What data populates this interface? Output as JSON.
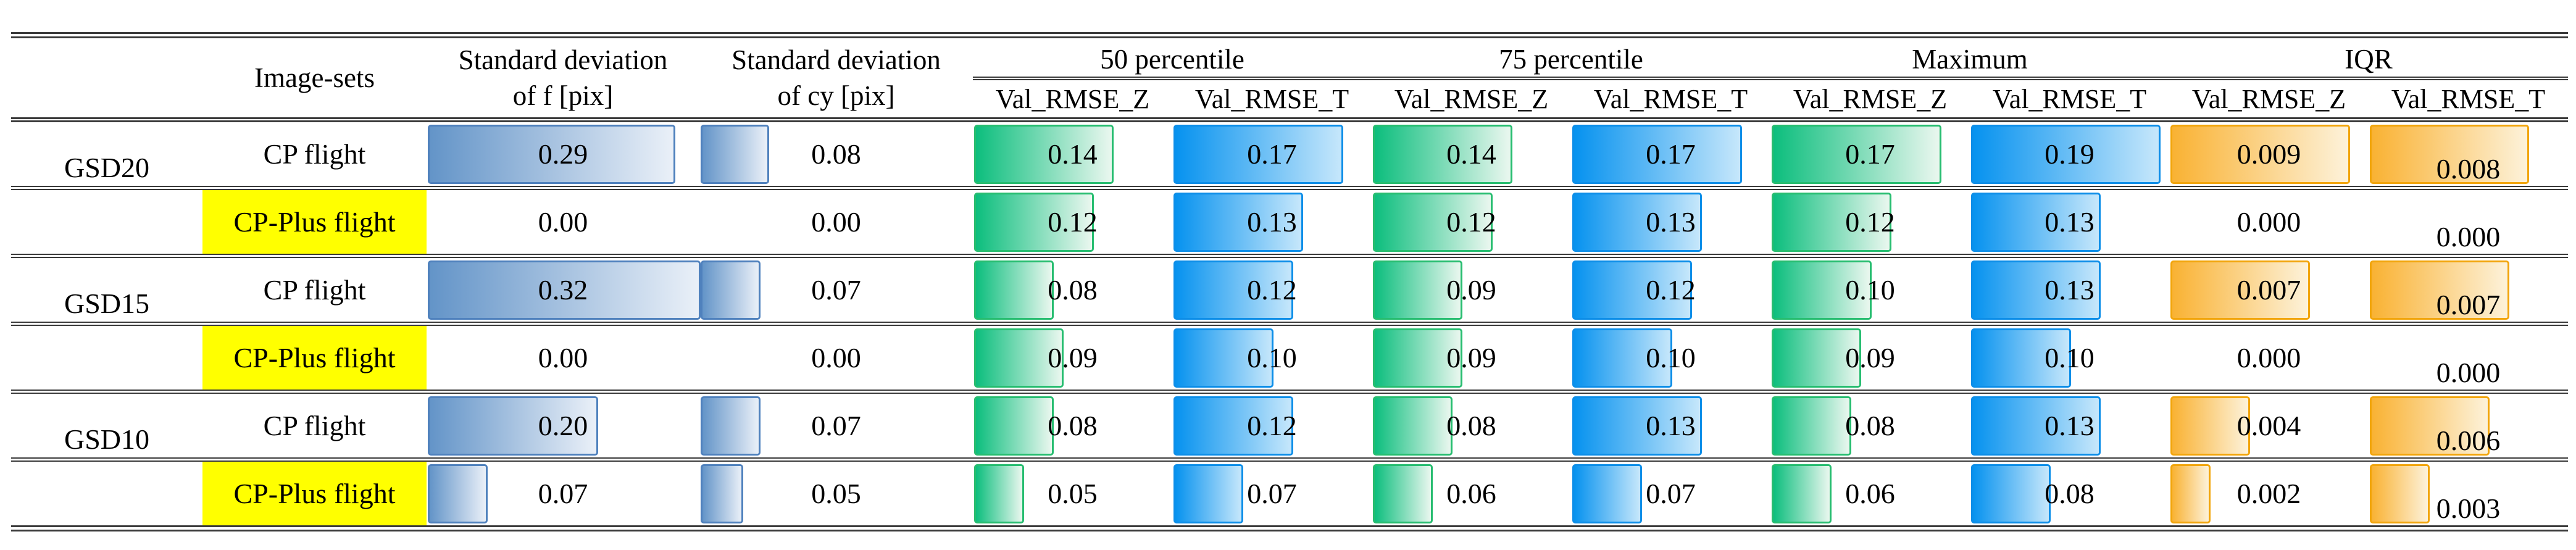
{
  "header": {
    "image_sets": "Image-sets",
    "std_f": [
      "Standard deviation",
      "of f [pix]"
    ],
    "std_cy": [
      "Standard deviation",
      "of cy [pix]"
    ],
    "groups": [
      "50 percentile",
      "75 percentile",
      "Maximum",
      "IQR"
    ],
    "sub_z": "Val_RMSE_Z",
    "sub_t": "Val_RMSE_T"
  },
  "colors": {
    "rule": "#3a3a3a",
    "highlight": "#ffff00",
    "steel_border": "#4f81bd",
    "steel_start": "#6394c8",
    "steel_end": "#eaf0f8",
    "green_border": "#27bd70",
    "green_start": "#0cbe7d",
    "green_end": "#eaf7ef",
    "azure_border": "#0d8ee8",
    "azure_start": "#0692ef",
    "azure_end": "#c6e7fb",
    "orange_border": "#f2a50c",
    "orange_start": "#f9b233",
    "orange_end": "#fdf2da"
  },
  "chart_data": {
    "type": "table",
    "title": "",
    "row_group_labels": [
      "GSD20",
      "GSD15",
      "GSD10"
    ],
    "columns": [
      "Image-sets",
      "Standard deviation of f [pix]",
      "Standard deviation of cy [pix]",
      "50 percentile Val_RMSE_Z",
      "50 percentile Val_RMSE_T",
      "75 percentile Val_RMSE_Z",
      "75 percentile Val_RMSE_T",
      "Maximum Val_RMSE_Z",
      "Maximum Val_RMSE_T",
      "IQR Val_RMSE_Z",
      "IQR Val_RMSE_T"
    ],
    "value_column_meta": [
      {
        "key": "std-f",
        "cls": "steel",
        "max": 0.32,
        "low": false
      },
      {
        "key": "std-cy",
        "cls": "steel",
        "max": 0.32,
        "low": false
      },
      {
        "key": "p50-z",
        "cls": "green",
        "max": 0.2,
        "low": false
      },
      {
        "key": "p50-t",
        "cls": "cyan",
        "max": 0.2,
        "low": false
      },
      {
        "key": "p75-z",
        "cls": "green",
        "max": 0.2,
        "low": false
      },
      {
        "key": "p75-t",
        "cls": "cyan",
        "max": 0.2,
        "low": false
      },
      {
        "key": "max-z",
        "cls": "green",
        "max": 0.2,
        "low": false
      },
      {
        "key": "max-t",
        "cls": "cyan",
        "max": 0.2,
        "low": false
      },
      {
        "key": "iqr-z",
        "cls": "orange",
        "max": 0.01,
        "low": false
      },
      {
        "key": "iqr-t",
        "cls": "orange",
        "max": 0.01,
        "low": true
      }
    ],
    "rows": [
      {
        "group": "GSD20",
        "image_set": "CP flight",
        "highlight": false,
        "values": [
          "0.29",
          "0.08",
          "0.14",
          "0.17",
          "0.14",
          "0.17",
          "0.17",
          "0.19",
          "0.009",
          "0.008"
        ]
      },
      {
        "group": "",
        "image_set": "CP-Plus flight",
        "highlight": true,
        "values": [
          "0.00",
          "0.00",
          "0.12",
          "0.13",
          "0.12",
          "0.13",
          "0.12",
          "0.13",
          "0.000",
          "0.000"
        ]
      },
      {
        "group": "GSD15",
        "image_set": "CP flight",
        "highlight": false,
        "values": [
          "0.32",
          "0.07",
          "0.08",
          "0.12",
          "0.09",
          "0.12",
          "0.10",
          "0.13",
          "0.007",
          "0.007"
        ]
      },
      {
        "group": "",
        "image_set": "CP-Plus flight",
        "highlight": true,
        "values": [
          "0.00",
          "0.00",
          "0.09",
          "0.10",
          "0.09",
          "0.10",
          "0.09",
          "0.10",
          "0.000",
          "0.000"
        ]
      },
      {
        "group": "GSD10",
        "image_set": "CP flight",
        "highlight": false,
        "values": [
          "0.20",
          "0.07",
          "0.08",
          "0.12",
          "0.08",
          "0.13",
          "0.08",
          "0.13",
          "0.004",
          "0.006"
        ]
      },
      {
        "group": "",
        "image_set": "CP-Plus flight",
        "highlight": true,
        "values": [
          "0.07",
          "0.05",
          "0.05",
          "0.07",
          "0.06",
          "0.07",
          "0.06",
          "0.08",
          "0.002",
          "0.003"
        ]
      }
    ]
  }
}
